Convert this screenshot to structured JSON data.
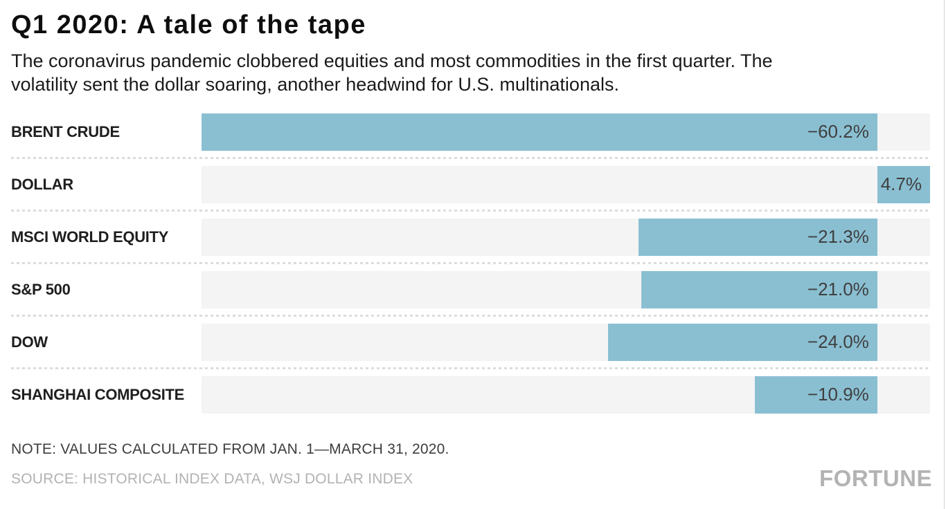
{
  "header": {
    "title": "Q1 2020: A tale of the tape",
    "subtitle": "The coronavirus pandemic clobbered equities and most commodities in the first quarter. The\nvolatility sent the dollar soaring, another headwind for U.S. multinationals."
  },
  "chart_data": {
    "type": "bar",
    "orientation": "horizontal",
    "title": "Q1 2020: A tale of the tape",
    "unit": "%",
    "categories": [
      "BRENT CRUDE",
      "DOLLAR",
      "MSCI WORLD EQUITY",
      "S&P 500",
      "DOW",
      "SHANGHAI COMPOSITE"
    ],
    "values": [
      -60.2,
      4.7,
      -21.3,
      -21.0,
      -24.0,
      -10.9
    ],
    "value_labels": [
      "−60.2%",
      "4.7%",
      "−21.3%",
      "−21.0%",
      "−24.0%",
      "−10.9%"
    ],
    "xlim": [
      -60.2,
      4.7
    ],
    "grid": "off",
    "legend": "none",
    "bar_color": "#8abfd2",
    "track_color": "#f4f4f4"
  },
  "footer": {
    "note": "NOTE: VALUES CALCULATED FROM JAN. 1—MARCH 31, 2020.",
    "source": "SOURCE: HISTORICAL INDEX DATA, WSJ DOLLAR INDEX",
    "brand": "FORTUNE"
  }
}
